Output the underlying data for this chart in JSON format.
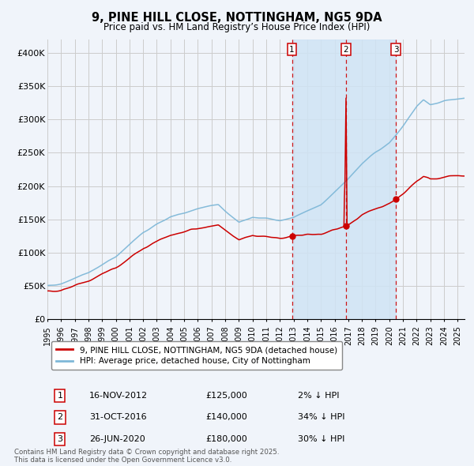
{
  "title": "9, PINE HILL CLOSE, NOTTINGHAM, NG5 9DA",
  "subtitle": "Price paid vs. HM Land Registry’s House Price Index (HPI)",
  "bg_color": "#f0f4fa",
  "plot_bg_color": "#f0f4fa",
  "grid_color": "#cccccc",
  "hpi_color": "#7fb8d8",
  "price_color": "#cc0000",
  "shade_color": "#d0e4f5",
  "vline_color": "#cc0000",
  "marker_color": "#cc0000",
  "ylim": [
    0,
    420000
  ],
  "yticks": [
    0,
    50000,
    100000,
    150000,
    200000,
    250000,
    300000,
    350000,
    400000
  ],
  "ytick_labels": [
    "£0",
    "£50K",
    "£100K",
    "£150K",
    "£200K",
    "£250K",
    "£300K",
    "£350K",
    "£400K"
  ],
  "transactions": [
    {
      "date_num": 2012.88,
      "price": 125000,
      "label": "1",
      "text": "16-NOV-2012",
      "pct": "2% ↓ HPI"
    },
    {
      "date_num": 2016.83,
      "price": 140000,
      "label": "2",
      "text": "31-OCT-2016",
      "pct": "34% ↓ HPI"
    },
    {
      "date_num": 2020.49,
      "price": 180000,
      "label": "3",
      "text": "26-JUN-2020",
      "pct": "30% ↓ HPI"
    }
  ],
  "legend_red": "9, PINE HILL CLOSE, NOTTINGHAM, NG5 9DA (detached house)",
  "legend_blue": "HPI: Average price, detached house, City of Nottingham",
  "footnote": "Contains HM Land Registry data © Crown copyright and database right 2025.\nThis data is licensed under the Open Government Licence v3.0.",
  "xlim_start": 1995.0,
  "xlim_end": 2025.5
}
